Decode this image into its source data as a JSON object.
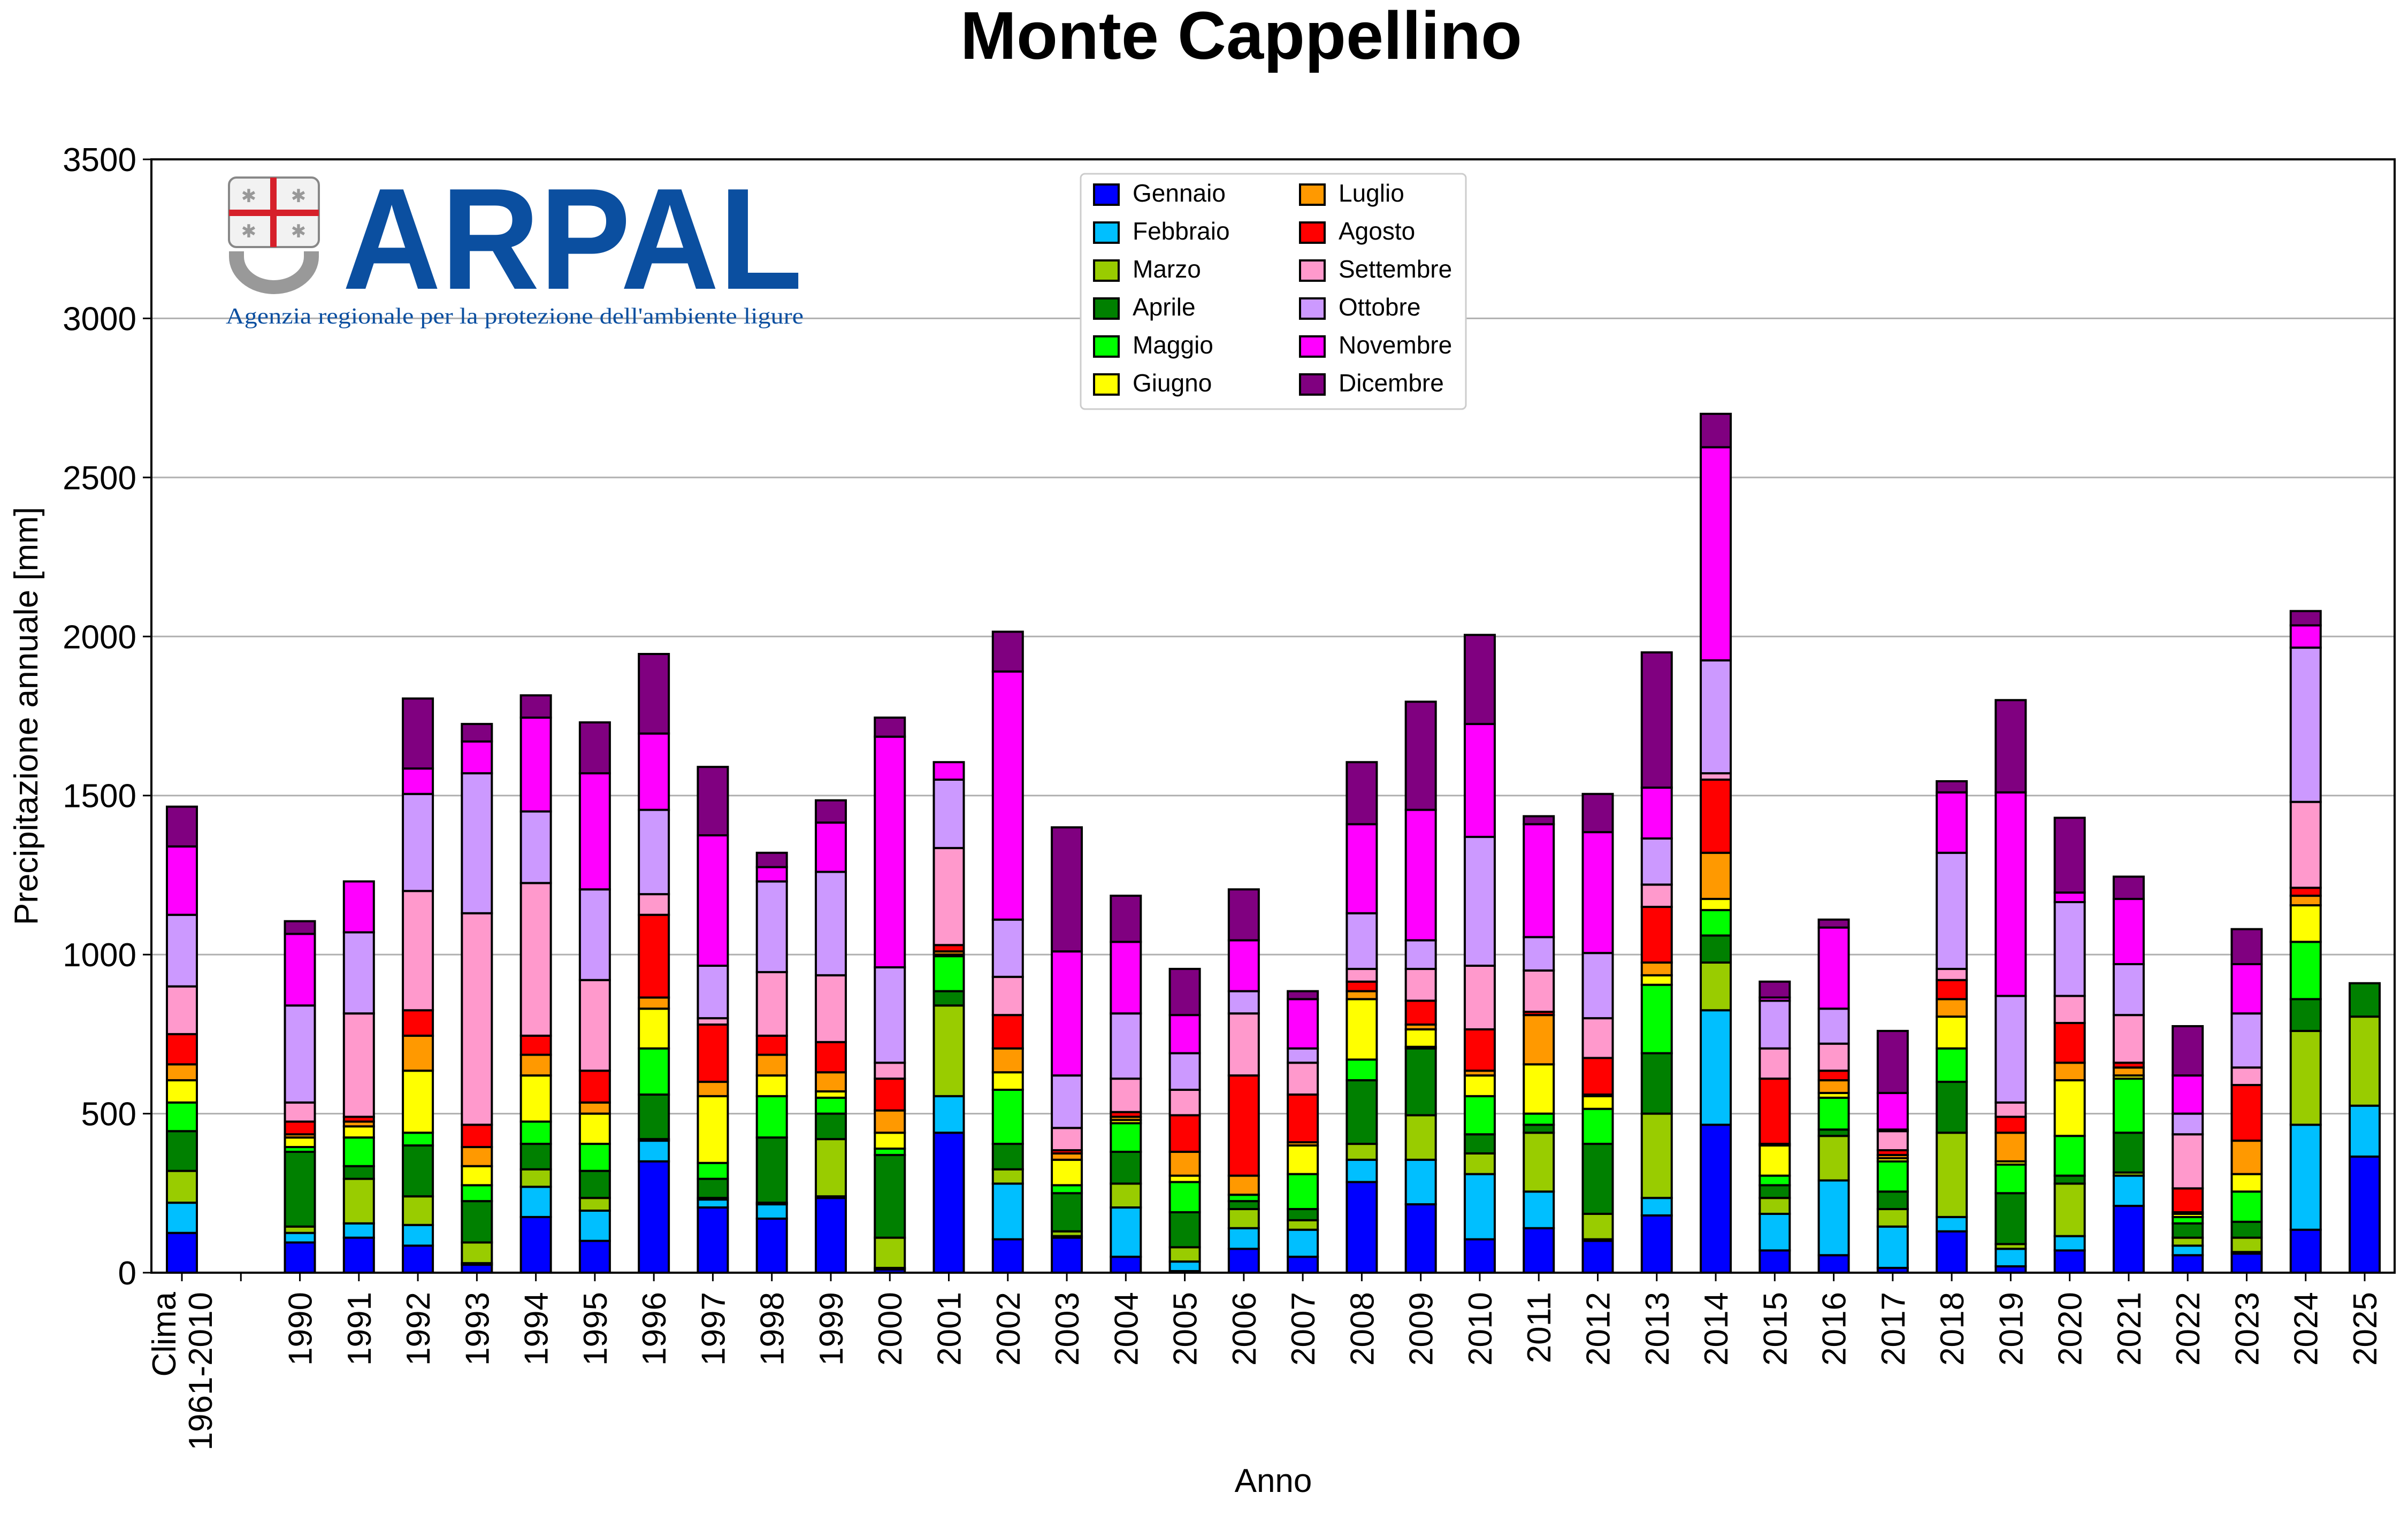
{
  "chart_data": {
    "type": "bar",
    "stacked": true,
    "title": "Monte Cappellino",
    "xlabel": "Anno",
    "ylabel": "Precipitazione annuale [mm]",
    "ylim": [
      0,
      3500
    ],
    "yticks": [
      0,
      500,
      1000,
      1500,
      2000,
      2500,
      3000,
      3500
    ],
    "grid": "horizontal",
    "legend": "top-center",
    "categories": [
      [
        "Clima",
        "1961-2010"
      ],
      [
        ""
      ],
      [
        "1990"
      ],
      [
        "1991"
      ],
      [
        "1992"
      ],
      [
        "1993"
      ],
      [
        "1994"
      ],
      [
        "1995"
      ],
      [
        "1996"
      ],
      [
        "1997"
      ],
      [
        "1998"
      ],
      [
        "1999"
      ],
      [
        "2000"
      ],
      [
        "2001"
      ],
      [
        "2002"
      ],
      [
        "2003"
      ],
      [
        "2004"
      ],
      [
        "2005"
      ],
      [
        "2006"
      ],
      [
        "2007"
      ],
      [
        "2008"
      ],
      [
        "2009"
      ],
      [
        "2010"
      ],
      [
        "2011"
      ],
      [
        "2012"
      ],
      [
        "2013"
      ],
      [
        "2014"
      ],
      [
        "2015"
      ],
      [
        "2016"
      ],
      [
        "2017"
      ],
      [
        "2018"
      ],
      [
        "2019"
      ],
      [
        "2020"
      ],
      [
        "2021"
      ],
      [
        "2022"
      ],
      [
        "2023"
      ],
      [
        "2024"
      ],
      [
        "2025"
      ]
    ],
    "series": [
      {
        "name": "Gennaio",
        "color": "#0000ff",
        "values": [
          125,
          0,
          95,
          110,
          85,
          25,
          175,
          100,
          350,
          205,
          170,
          235,
          10,
          440,
          105,
          110,
          50,
          5,
          75,
          50,
          285,
          215,
          105,
          140,
          100,
          180,
          465,
          70,
          55,
          15,
          130,
          20,
          70,
          210,
          55,
          60,
          135,
          365
        ]
      },
      {
        "name": "Febbraio",
        "color": "#00bfff",
        "values": [
          95,
          0,
          30,
          45,
          65,
          5,
          95,
          95,
          65,
          25,
          45,
          5,
          5,
          115,
          175,
          5,
          155,
          30,
          65,
          85,
          70,
          140,
          205,
          115,
          5,
          55,
          360,
          115,
          235,
          130,
          45,
          55,
          45,
          95,
          30,
          5,
          330,
          160
        ]
      },
      {
        "name": "Marzo",
        "color": "#99cc00",
        "values": [
          100,
          0,
          20,
          140,
          90,
          65,
          55,
          40,
          5,
          5,
          5,
          180,
          95,
          285,
          45,
          15,
          75,
          45,
          60,
          30,
          50,
          140,
          65,
          185,
          80,
          265,
          150,
          50,
          140,
          55,
          265,
          15,
          165,
          10,
          25,
          45,
          295,
          280
        ]
      },
      {
        "name": "Aprile",
        "color": "#008000",
        "values": [
          125,
          0,
          235,
          40,
          160,
          130,
          80,
          85,
          140,
          60,
          205,
          80,
          260,
          45,
          80,
          120,
          100,
          110,
          25,
          35,
          200,
          210,
          60,
          25,
          220,
          190,
          85,
          40,
          20,
          55,
          160,
          160,
          25,
          125,
          45,
          50,
          100,
          105
        ]
      },
      {
        "name": "Maggio",
        "color": "#00ff00",
        "values": [
          90,
          0,
          15,
          90,
          40,
          50,
          70,
          85,
          145,
          50,
          130,
          50,
          20,
          110,
          170,
          25,
          90,
          95,
          20,
          110,
          65,
          5,
          120,
          35,
          110,
          215,
          80,
          30,
          100,
          95,
          105,
          90,
          125,
          170,
          20,
          95,
          180,
          0
        ]
      },
      {
        "name": "Giugno",
        "color": "#ffff00",
        "values": [
          70,
          0,
          30,
          35,
          195,
          60,
          145,
          95,
          125,
          210,
          65,
          20,
          50,
          5,
          55,
          80,
          10,
          20,
          0,
          90,
          190,
          55,
          65,
          155,
          40,
          30,
          35,
          95,
          15,
          10,
          100,
          10,
          175,
          10,
          10,
          55,
          115,
          0
        ]
      },
      {
        "name": "Luglio",
        "color": "#ff9900",
        "values": [
          50,
          0,
          10,
          15,
          110,
          60,
          65,
          35,
          35,
          45,
          65,
          60,
          70,
          10,
          75,
          20,
          10,
          75,
          60,
          10,
          25,
          15,
          15,
          155,
          5,
          40,
          145,
          5,
          40,
          10,
          55,
          90,
          55,
          25,
          5,
          105,
          30,
          0
        ]
      },
      {
        "name": "Agosto",
        "color": "#ff0000",
        "values": [
          95,
          0,
          40,
          15,
          80,
          70,
          60,
          100,
          260,
          180,
          60,
          95,
          100,
          20,
          105,
          10,
          15,
          115,
          315,
          150,
          30,
          75,
          130,
          10,
          115,
          175,
          230,
          205,
          30,
          15,
          60,
          50,
          125,
          15,
          75,
          175,
          25,
          0
        ]
      },
      {
        "name": "Settembre",
        "color": "#ff99cc",
        "values": [
          150,
          0,
          60,
          325,
          375,
          665,
          480,
          285,
          65,
          20,
          200,
          210,
          50,
          305,
          120,
          70,
          105,
          80,
          195,
          100,
          40,
          100,
          200,
          130,
          125,
          70,
          20,
          95,
          85,
          60,
          35,
          45,
          85,
          150,
          170,
          55,
          270,
          0
        ]
      },
      {
        "name": "Ottobre",
        "color": "#cc99ff",
        "values": [
          225,
          0,
          305,
          255,
          305,
          440,
          225,
          285,
          265,
          165,
          285,
          325,
          300,
          215,
          180,
          165,
          205,
          115,
          70,
          45,
          175,
          90,
          405,
          105,
          205,
          145,
          355,
          150,
          110,
          5,
          365,
          335,
          295,
          160,
          65,
          170,
          485,
          0
        ]
      },
      {
        "name": "Novembre",
        "color": "#ff00ff",
        "values": [
          215,
          0,
          225,
          160,
          80,
          100,
          295,
          365,
          240,
          410,
          45,
          155,
          725,
          55,
          780,
          390,
          225,
          120,
          160,
          155,
          280,
          410,
          355,
          355,
          380,
          160,
          670,
          10,
          255,
          115,
          190,
          640,
          30,
          205,
          120,
          155,
          70,
          0
        ]
      },
      {
        "name": "Dicembre",
        "color": "#800080",
        "values": [
          125,
          0,
          40,
          0,
          220,
          55,
          70,
          160,
          250,
          215,
          45,
          70,
          60,
          0,
          125,
          390,
          145,
          145,
          160,
          25,
          195,
          340,
          280,
          25,
          120,
          425,
          105,
          50,
          25,
          195,
          35,
          290,
          235,
          70,
          155,
          110,
          45,
          0
        ]
      }
    ]
  },
  "logo": {
    "name": "ARPAL",
    "tagline": "Agenzia regionale per la protezione dell'ambiente ligure",
    "color": "#0b4fa0"
  }
}
